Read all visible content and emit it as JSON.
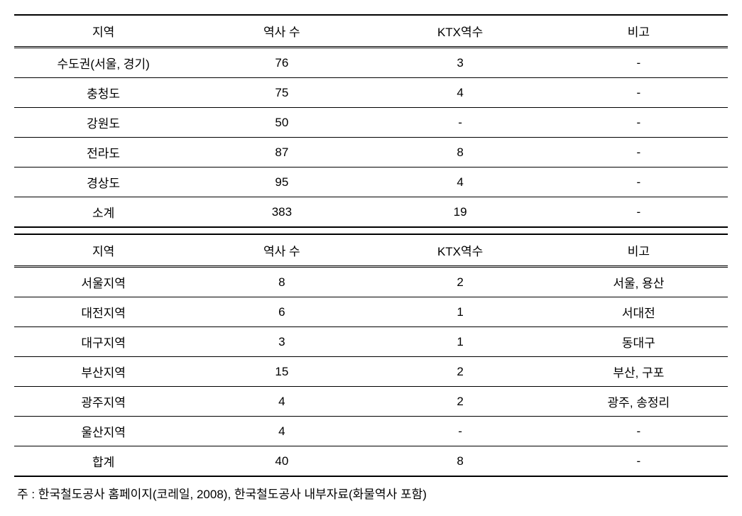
{
  "table1": {
    "columns": [
      "지역",
      "역사 수",
      "KTX역수",
      "비고"
    ],
    "rows": [
      [
        "수도권(서울, 경기)",
        "76",
        "3",
        "-"
      ],
      [
        "충청도",
        "75",
        "4",
        "-"
      ],
      [
        "강원도",
        "50",
        "-",
        "-"
      ],
      [
        "전라도",
        "87",
        "8",
        "-"
      ],
      [
        "경상도",
        "95",
        "4",
        "-"
      ],
      [
        "소계",
        "383",
        "19",
        "-"
      ]
    ],
    "column_widths": [
      "25%",
      "25%",
      "25%",
      "25%"
    ],
    "border_color": "#000000",
    "background_color": "#ffffff",
    "font_size": 17,
    "text_align": "center"
  },
  "table2": {
    "columns": [
      "지역",
      "역사 수",
      "KTX역수",
      "비고"
    ],
    "rows": [
      [
        "서울지역",
        "8",
        "2",
        "서울, 용산"
      ],
      [
        "대전지역",
        "6",
        "1",
        "서대전"
      ],
      [
        "대구지역",
        "3",
        "1",
        "동대구"
      ],
      [
        "부산지역",
        "15",
        "2",
        "부산, 구포"
      ],
      [
        "광주지역",
        "4",
        "2",
        "광주, 송정리"
      ],
      [
        "울산지역",
        "4",
        "-",
        "-"
      ],
      [
        "합계",
        "40",
        "8",
        "-"
      ]
    ],
    "column_widths": [
      "25%",
      "25%",
      "25%",
      "25%"
    ],
    "border_color": "#000000",
    "background_color": "#ffffff",
    "font_size": 17,
    "text_align": "center"
  },
  "footnote": "주 : 한국철도공사 홈페이지(코레일, 2008), 한국철도공사 내부자료(화물역사 포함)"
}
